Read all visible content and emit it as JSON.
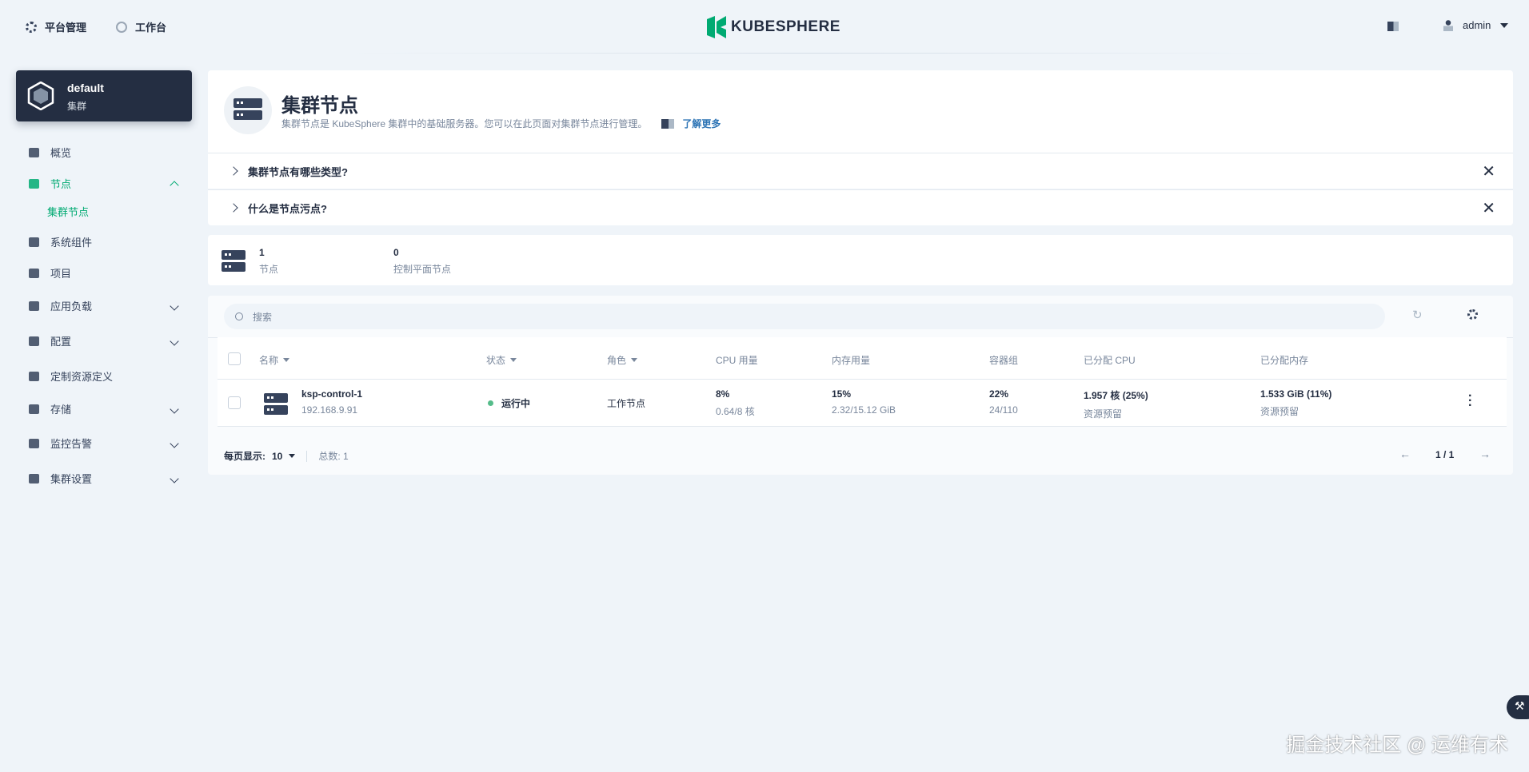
{
  "topbar": {
    "platform": "平台管理",
    "workbench": "工作台",
    "logo": "KUBESPHERE",
    "user": "admin"
  },
  "cluster": {
    "name": "default",
    "type": "集群"
  },
  "sidebar": {
    "items": [
      {
        "label": "概览",
        "icon": "dashboard-icon"
      },
      {
        "label": "节点",
        "icon": "nodes-icon",
        "active": true,
        "expanded": true
      },
      {
        "label": "集群节点",
        "sub": true,
        "active": true
      },
      {
        "label": "系统组件",
        "icon": "components-icon"
      },
      {
        "label": "项目",
        "icon": "project-icon"
      },
      {
        "label": "应用负载",
        "icon": "appcluster-icon",
        "expandable": true
      },
      {
        "label": "配置",
        "icon": "hammer-icon",
        "expandable": true
      },
      {
        "label": "定制资源定义",
        "icon": "crd-icon"
      },
      {
        "label": "存储",
        "icon": "storage-icon",
        "expandable": true
      },
      {
        "label": "监控告警",
        "icon": "monitor-icon",
        "expandable": true
      },
      {
        "label": "集群设置",
        "icon": "gear-icon",
        "expandable": true
      }
    ]
  },
  "header": {
    "title": "集群节点",
    "desc": "集群节点是 KubeSphere 集群中的基础服务器。您可以在此页面对集群节点进行管理。",
    "learn_more": "了解更多"
  },
  "faq": [
    "集群节点有哪些类型?",
    "什么是节点污点?"
  ],
  "stats": [
    {
      "value": "1",
      "label": "节点"
    },
    {
      "value": "0",
      "label": "控制平面节点"
    }
  ],
  "table": {
    "search_placeholder": "搜索",
    "columns": [
      "名称",
      "状态",
      "角色",
      "CPU 用量",
      "内存用量",
      "容器组",
      "已分配 CPU",
      "已分配内存"
    ],
    "rows": [
      {
        "name": "ksp-control-1",
        "ip": "192.168.9.91",
        "status": "运行中",
        "role": "工作节点",
        "cpu": "8%",
        "cpu_detail": "0.64/8 核",
        "mem": "15%",
        "mem_detail": "2.32/15.12 GiB",
        "pods": "22%",
        "pods_detail": "24/110",
        "alloc_cpu": "1.957 核 (25%)",
        "alloc_cpu_note": "资源预留",
        "alloc_mem": "1.533 GiB (11%)",
        "alloc_mem_note": "资源预留"
      }
    ],
    "page_size_label": "每页显示:",
    "page_size": "10",
    "total": "总数: 1",
    "page": "1 / 1"
  },
  "watermark": "掘金技术社区 @ 运维有术",
  "colors": {
    "accent": "#00aa72",
    "dark": "#242e42",
    "bg": "#eff4f9"
  }
}
